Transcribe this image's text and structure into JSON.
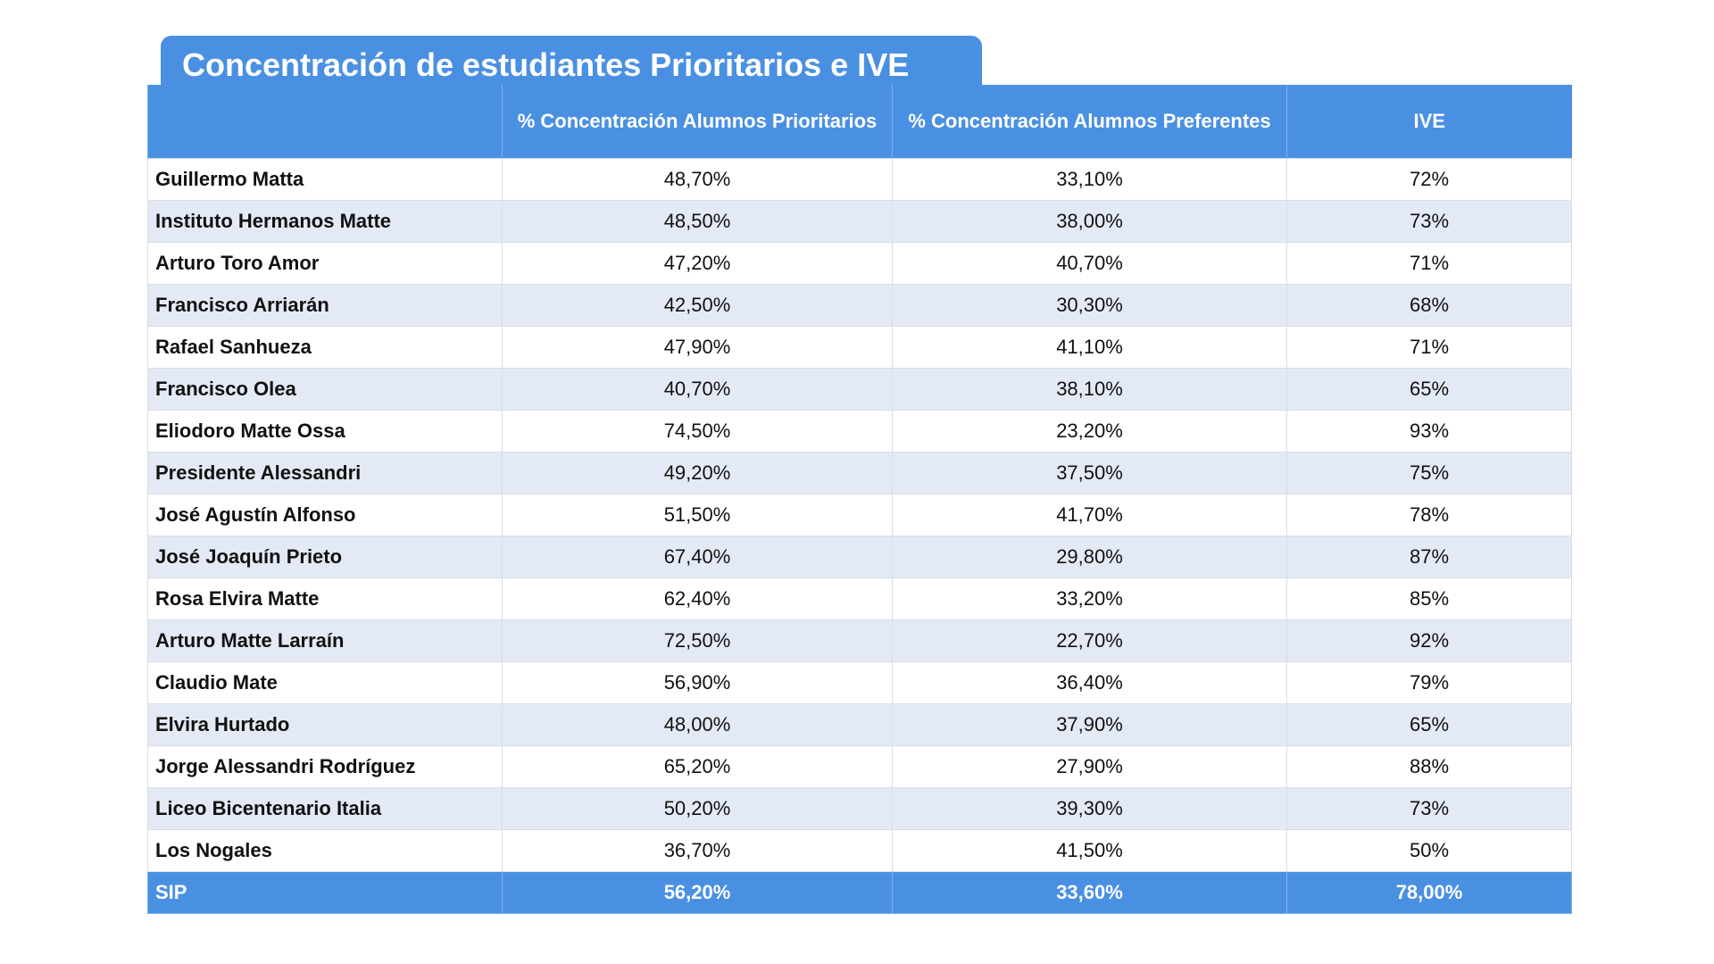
{
  "title": "Concentración de estudiantes Prioritarios e IVE",
  "table": {
    "header": [
      "% Concentración Alumnos Prioritarios",
      "% Concentración Alumnos Preferentes",
      "IVE"
    ],
    "rows": [
      [
        "Guillermo Matta",
        "48,70%",
        "33,10%",
        "72%"
      ],
      [
        "Instituto Hermanos Matte",
        "48,50%",
        "38,00%",
        "73%"
      ],
      [
        "Arturo Toro Amor",
        "47,20%",
        "40,70%",
        "71%"
      ],
      [
        "Francisco Arriarán",
        "42,50%",
        "30,30%",
        "68%"
      ],
      [
        "Rafael Sanhueza",
        "47,90%",
        "41,10%",
        "71%"
      ],
      [
        "Francisco Olea",
        "40,70%",
        "38,10%",
        "65%"
      ],
      [
        "Eliodoro Matte Ossa",
        "74,50%",
        "23,20%",
        "93%"
      ],
      [
        "Presidente Alessandri",
        "49,20%",
        "37,50%",
        "75%"
      ],
      [
        "José Agustín Alfonso",
        "51,50%",
        "41,70%",
        "78%"
      ],
      [
        "José Joaquín Prieto",
        "67,40%",
        "29,80%",
        "87%"
      ],
      [
        "Rosa Elvira Matte",
        "62,40%",
        "33,20%",
        "85%"
      ],
      [
        "Arturo Matte Larraín",
        "72,50%",
        "22,70%",
        "92%"
      ],
      [
        "Claudio Mate",
        "56,90%",
        "36,40%",
        "79%"
      ],
      [
        "Elvira Hurtado",
        "48,00%",
        "37,90%",
        "65%"
      ],
      [
        "Jorge Alessandri Rodríguez",
        "65,20%",
        "27,90%",
        "88%"
      ],
      [
        "Liceo Bicentenario Italia",
        "50,20%",
        "39,30%",
        "73%"
      ],
      [
        "Los Nogales",
        "36,70%",
        "41,50%",
        "50%"
      ]
    ],
    "footer": [
      "SIP",
      "56,20%",
      "33,60%",
      "78,00%"
    ]
  }
}
